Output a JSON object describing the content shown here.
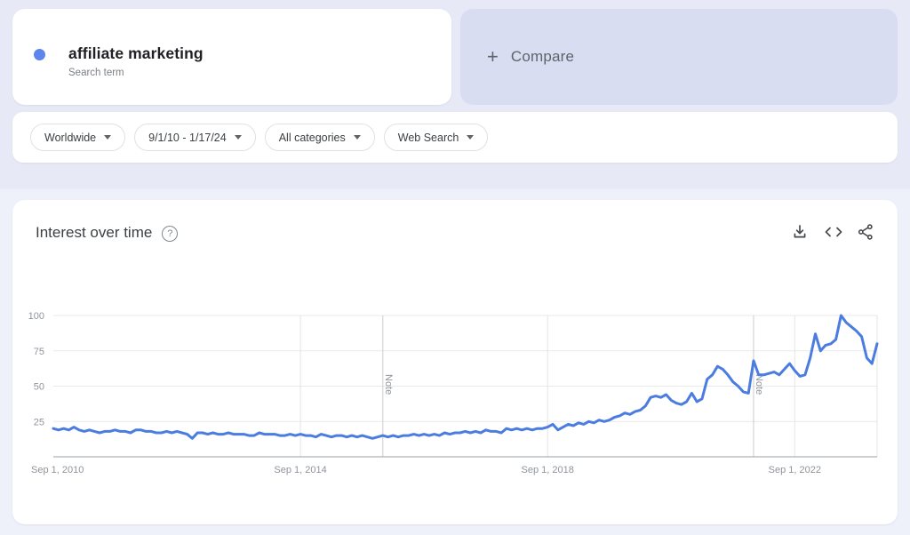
{
  "term_card": {
    "title": "affiliate marketing",
    "subtitle": "Search term",
    "dot_color": "#5c86ec"
  },
  "compare_card": {
    "plus": "+",
    "label": "Compare"
  },
  "filters": [
    {
      "label": "Worldwide"
    },
    {
      "label": "9/1/10 - 1/17/24"
    },
    {
      "label": "All categories"
    },
    {
      "label": "Web Search"
    }
  ],
  "chart_header": {
    "title": "Interest over time",
    "help_glyph": "?",
    "icons": [
      "download-icon",
      "embed-icon",
      "share-icon"
    ]
  },
  "chart_data": {
    "type": "line",
    "title": "Interest over time",
    "x_start": "2010-09",
    "x_end": "2024-01",
    "x_interval": "month",
    "x_tick_labels": [
      "Sep 1, 2010",
      "Sep 1, 2014",
      "Sep 1, 2018",
      "Sep 1, 2022"
    ],
    "x_tick_month_indices": [
      0,
      48,
      96,
      144
    ],
    "y_ticks": [
      25,
      50,
      75,
      100
    ],
    "ylim": [
      0,
      100
    ],
    "grid": true,
    "legend_position": "none",
    "notes": [
      {
        "label": "Note",
        "month_index": 64
      },
      {
        "label": "Note",
        "month_index": 136
      }
    ],
    "series": [
      {
        "name": "affiliate marketing",
        "color": "#4b7ce0",
        "values": [
          20,
          19,
          20,
          19,
          21,
          19,
          18,
          19,
          18,
          17,
          18,
          18,
          19,
          18,
          18,
          17,
          19,
          19,
          18,
          18,
          17,
          17,
          18,
          17,
          18,
          17,
          16,
          13,
          17,
          17,
          16,
          17,
          16,
          16,
          17,
          16,
          16,
          16,
          15,
          15,
          17,
          16,
          16,
          16,
          15,
          15,
          16,
          15,
          16,
          15,
          15,
          14,
          16,
          15,
          14,
          15,
          15,
          14,
          15,
          14,
          15,
          14,
          13,
          14,
          15,
          14,
          15,
          14,
          15,
          15,
          16,
          15,
          16,
          15,
          16,
          15,
          17,
          16,
          17,
          17,
          18,
          17,
          18,
          17,
          19,
          18,
          18,
          17,
          20,
          19,
          20,
          19,
          20,
          19,
          20,
          20,
          21,
          23,
          19,
          21,
          23,
          22,
          24,
          23,
          25,
          24,
          26,
          25,
          26,
          28,
          29,
          31,
          30,
          32,
          33,
          36,
          42,
          43,
          42,
          44,
          40,
          38,
          37,
          39,
          45,
          39,
          41,
          55,
          58,
          64,
          62,
          58,
          53,
          50,
          46,
          45,
          68,
          58,
          58,
          59,
          60,
          58,
          62,
          66,
          61,
          57,
          58,
          70,
          87,
          75,
          79,
          80,
          83,
          100,
          95,
          92,
          89,
          85,
          70,
          66,
          80
        ]
      }
    ]
  }
}
